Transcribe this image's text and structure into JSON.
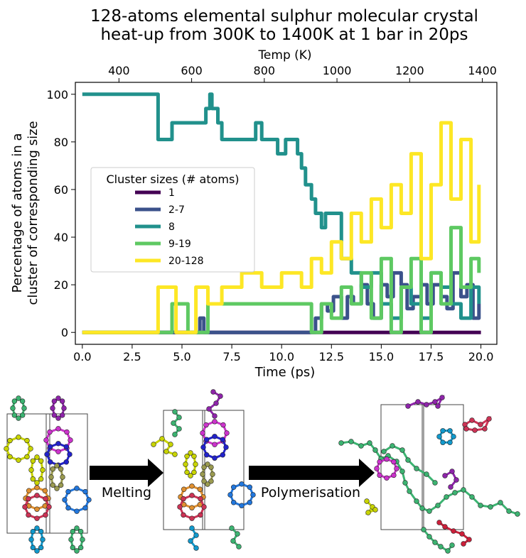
{
  "chart_data": {
    "type": "line",
    "title": "128-atoms elemental sulphur molecular crystal\nheat-up from 300K to 1400K at 1 bar in 20ps",
    "title_lines": [
      "128-atoms elemental sulphur molecular crystal",
      "heat-up from 300K to 1400K at 1 bar in 20ps"
    ],
    "xlabel": "Time (ps)",
    "ylabel_lines": [
      "Percentage of atoms in a",
      "cluster of corresponding size"
    ],
    "top_xlabel": "Temp (K)",
    "xlim": [
      -0.35,
      20.8
    ],
    "ylim": [
      -5,
      105
    ],
    "top_xlim": [
      280,
      1440
    ],
    "x_ticks": [
      0,
      2.5,
      5,
      7.5,
      10,
      12.5,
      15,
      17.5,
      20
    ],
    "x_tick_labels": [
      "0.0",
      "2.5",
      "5.0",
      "7.5",
      "10.0",
      "12.5",
      "15.0",
      "17.5",
      "20.0"
    ],
    "y_ticks": [
      0,
      20,
      40,
      60,
      80,
      100
    ],
    "y_tick_labels": [
      "0",
      "20",
      "40",
      "60",
      "80",
      "100"
    ],
    "top_x_ticks": [
      400,
      600,
      800,
      1000,
      1200,
      1400
    ],
    "top_x_tick_labels": [
      "400",
      "600",
      "800",
      "1000",
      "1200",
      "1400"
    ],
    "grid": false,
    "legend": {
      "title": "Cluster sizes (# atoms)",
      "placement": "center-left",
      "entries": [
        "1",
        "2-7",
        "8",
        "9-19",
        "20-128"
      ]
    },
    "series": [
      {
        "name": "1",
        "color": "#440154",
        "x": [
          0,
          5.5,
          6.0,
          12.0,
          12.5,
          20.0
        ],
        "y": [
          0,
          0,
          0,
          0,
          0,
          0
        ]
      },
      {
        "name": "2-7",
        "color": "#3b528b",
        "x": [
          0,
          5.8,
          5.9,
          6.1,
          6.2,
          11.4,
          11.7,
          12.0,
          12.3,
          12.6,
          13.0,
          13.3,
          13.6,
          14.0,
          14.3,
          14.6,
          15.0,
          15.3,
          15.6,
          16.0,
          16.3,
          16.6,
          17.0,
          17.3,
          17.6,
          18.0,
          18.3,
          18.6,
          19.0,
          19.3,
          19.6,
          19.9
        ],
        "y": [
          0,
          0,
          6,
          0,
          0,
          0,
          6,
          12,
          9,
          15,
          6,
          15,
          12,
          20,
          12,
          6,
          20,
          15,
          25,
          20,
          10,
          15,
          20,
          12,
          20,
          15,
          10,
          25,
          15,
          20,
          6,
          12
        ]
      },
      {
        "name": "8",
        "color": "#21918c",
        "x": [
          0,
          3.8,
          3.8,
          4.5,
          4.5,
          6.2,
          6.2,
          6.4,
          6.5,
          6.8,
          7.0,
          8.5,
          8.7,
          9.0,
          9.8,
          10.2,
          10.8,
          11.0,
          11.2,
          11.5,
          11.7,
          12.0,
          12.2,
          12.4,
          13.0,
          13.5,
          14.0,
          14.5,
          15.0,
          15.5,
          16.0,
          16.5,
          17.0,
          17.5,
          18.0,
          18.5,
          19.0,
          19.5,
          19.9
        ],
        "y": [
          100,
          100,
          81,
          81,
          88,
          88,
          94,
          100,
          94,
          88,
          81,
          81,
          88,
          81,
          75,
          81,
          75,
          69,
          62,
          56,
          50,
          44,
          50,
          50,
          31,
          25,
          19,
          25,
          12,
          6,
          19,
          12,
          6,
          25,
          19,
          12,
          6,
          19,
          12
        ]
      },
      {
        "name": "9-19",
        "color": "#5ec962",
        "x": [
          0,
          4.4,
          4.5,
          5.2,
          5.3,
          6.2,
          6.3,
          11.4,
          11.5,
          12.0,
          12.5,
          13.0,
          13.5,
          14.0,
          14.5,
          15.0,
          15.5,
          16.0,
          16.5,
          17.0,
          17.5,
          18.0,
          18.5,
          19.0,
          19.5,
          19.9
        ],
        "y": [
          0,
          0,
          12,
          12,
          0,
          0,
          12,
          12,
          0,
          12,
          6,
          19,
          12,
          25,
          6,
          31,
          0,
          19,
          31,
          0,
          25,
          12,
          44,
          19,
          31,
          25
        ]
      },
      {
        "name": "20-128",
        "color": "#fde725",
        "x": [
          0,
          3.7,
          3.8,
          4.6,
          4.7,
          5.6,
          5.7,
          6.2,
          6.3,
          7.0,
          7.5,
          8.0,
          9.0,
          10.0,
          11.0,
          11.5,
          12.0,
          12.5,
          13.0,
          13.5,
          14.0,
          14.5,
          15.0,
          15.5,
          16.0,
          16.5,
          17.0,
          17.5,
          18.0,
          18.5,
          19.0,
          19.5,
          19.9
        ],
        "y": [
          0,
          0,
          19,
          19,
          0,
          0,
          19,
          19,
          12,
          19,
          19,
          25,
          19,
          25,
          19,
          31,
          25,
          38,
          31,
          50,
          38,
          56,
          44,
          62,
          50,
          75,
          31,
          62,
          88,
          56,
          81,
          38,
          62
        ]
      }
    ]
  },
  "diagram": {
    "stage_labels": [
      "Melting",
      "Polymerisation"
    ]
  }
}
